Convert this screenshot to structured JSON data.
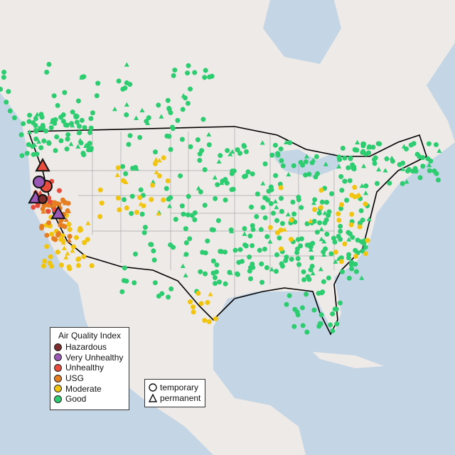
{
  "legend_aqi": {
    "title": "Air Quality Index",
    "items": [
      {
        "label": "Hazardous",
        "color": "#7e2d2d"
      },
      {
        "label": "Very Unhealthy",
        "color": "#9b59b6"
      },
      {
        "label": "Unhealthy",
        "color": "#e74c3c"
      },
      {
        "label": "USG",
        "color": "#e67e22"
      },
      {
        "label": "Moderate",
        "color": "#f1c40f"
      },
      {
        "label": "Good",
        "color": "#2ecc71"
      }
    ]
  },
  "legend_type": {
    "items": [
      {
        "label": "temporary",
        "icon": "circle-icon"
      },
      {
        "label": "permanent",
        "icon": "triangle-icon"
      }
    ]
  },
  "colors": {
    "water": "#c4d6e6",
    "land": "#eeeae7",
    "border": "#000000",
    "state_lines": "#a9a9a9"
  }
}
